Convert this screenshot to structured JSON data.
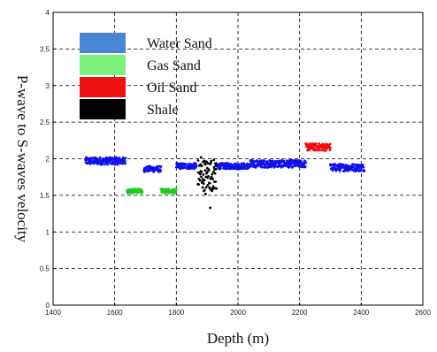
{
  "chart_data": {
    "type": "scatter",
    "xlabel": "Depth (m)",
    "ylabel": "P-wave to S-waves velocity",
    "xlim": [
      1400,
      2600
    ],
    "ylim": [
      0,
      4
    ],
    "xticks": [
      1400,
      1600,
      1800,
      2000,
      2200,
      2400,
      2600
    ],
    "yticks": [
      0,
      0.5,
      1,
      1.5,
      2,
      2.5,
      3,
      3.5,
      4
    ],
    "grid": true,
    "grid_style": "dashed",
    "legend_position": "top-left",
    "legend": [
      {
        "label": "Water Sand",
        "color": "#4a86d6"
      },
      {
        "label": "Gas Sand",
        "color": "#7cf27c"
      },
      {
        "label": "Oil Sand",
        "color": "#ee1111"
      },
      {
        "label": "Shale",
        "color": "#000000"
      }
    ],
    "series": [
      {
        "name": "Water Sand",
        "color": "#1111ee",
        "segments": [
          {
            "x_start": 1505,
            "x_end": 1635,
            "y_mean": 1.97,
            "y_spread": 0.05
          },
          {
            "x_start": 1695,
            "x_end": 1750,
            "y_mean": 1.86,
            "y_spread": 0.04
          },
          {
            "x_start": 1800,
            "x_end": 1865,
            "y_mean": 1.9,
            "y_spread": 0.04
          },
          {
            "x_start": 1930,
            "x_end": 2040,
            "y_mean": 1.9,
            "y_spread": 0.04
          },
          {
            "x_start": 2040,
            "x_end": 2220,
            "y_mean": 1.93,
            "y_spread": 0.05
          },
          {
            "x_start": 2300,
            "x_end": 2410,
            "y_mean": 1.88,
            "y_spread": 0.05
          }
        ]
      },
      {
        "name": "Gas Sand",
        "color": "#22cc22",
        "segments": [
          {
            "x_start": 1640,
            "x_end": 1690,
            "y_mean": 1.56,
            "y_spread": 0.03
          },
          {
            "x_start": 1750,
            "x_end": 1800,
            "y_mean": 1.56,
            "y_spread": 0.03
          }
        ]
      },
      {
        "name": "Oil Sand",
        "color": "#ee1111",
        "segments": [
          {
            "x_start": 2220,
            "x_end": 2300,
            "y_mean": 2.16,
            "y_spread": 0.05
          }
        ]
      },
      {
        "name": "Shale",
        "color": "#000000",
        "segments": [
          {
            "x_start": 1870,
            "x_end": 1930,
            "y_mean": 1.78,
            "y_spread": 0.22
          }
        ],
        "outliers": [
          {
            "x": 1910,
            "y": 1.33
          },
          {
            "x": 1880,
            "y": 2.02
          },
          {
            "x": 1895,
            "y": 1.52
          }
        ]
      }
    ]
  }
}
